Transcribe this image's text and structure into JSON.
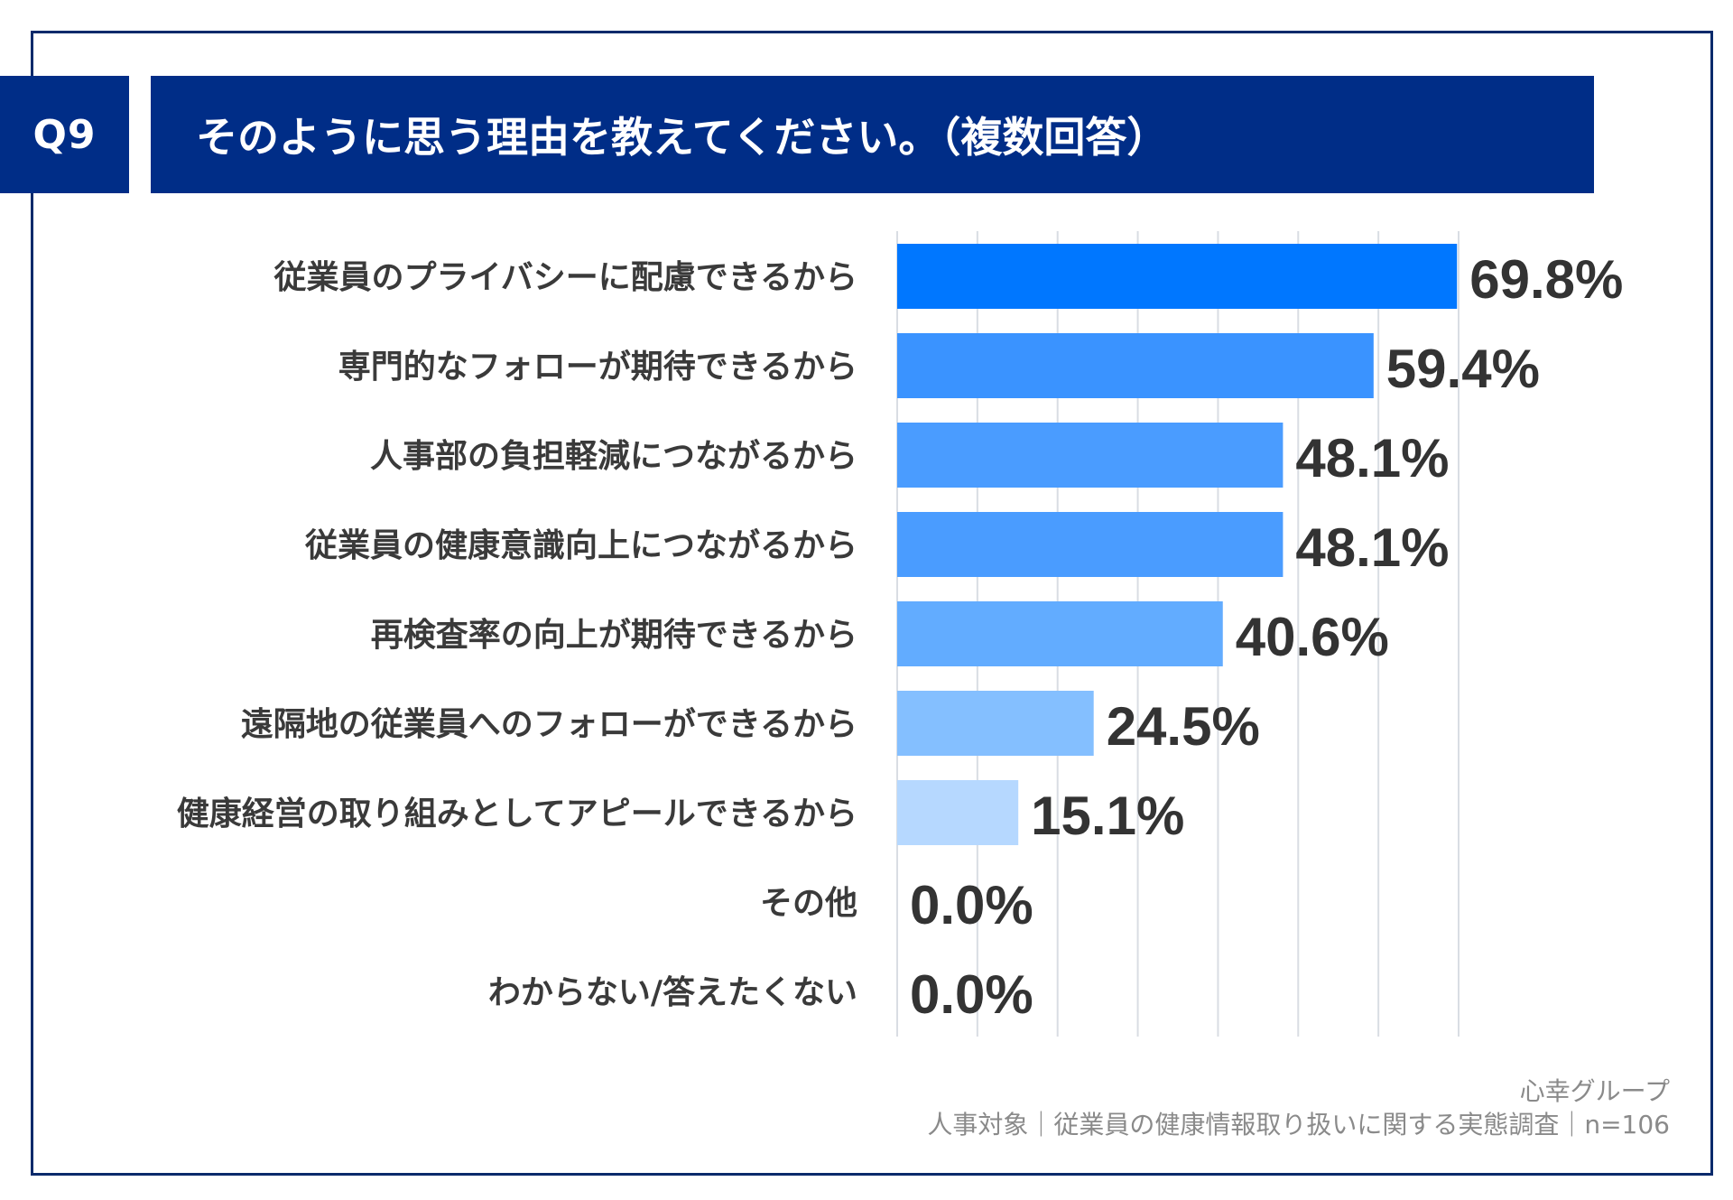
{
  "header": {
    "question_no": "Q9",
    "title": "そのように思う理由を教えてください。（複数回答）"
  },
  "footer": {
    "brand": "心幸グループ",
    "source": "人事対象｜従業員の健康情報取り扱いに関する実態調査｜n=106"
  },
  "colors": {
    "header_bg": "#002d87",
    "bar_palette": [
      "#0077ff",
      "#3a93ff",
      "#4a9cff",
      "#4a9cff",
      "#62acff",
      "#84bfff",
      "#b6d8ff",
      "#c5e0ff",
      "#c5e0ff"
    ],
    "gridline": "#d9dde3"
  },
  "chart_data": {
    "type": "bar",
    "orientation": "horizontal",
    "categories": [
      "従業員のプライバシーに配慮できるから",
      "専門的なフォローが期待できるから",
      "人事部の負担軽減につながるから",
      "従業員の健康意識向上につながるから",
      "再検査率の向上が期待できるから",
      "遠隔地の従業員へのフォローができるから",
      "健康経営の取り組みとしてアピールできるから",
      "その他",
      "わからない/答えたくない"
    ],
    "values": [
      69.8,
      59.4,
      48.1,
      48.1,
      40.6,
      24.5,
      15.1,
      0.0,
      0.0
    ],
    "value_labels": [
      "69.8%",
      "59.4%",
      "48.1%",
      "48.1%",
      "40.6%",
      "24.5%",
      "15.1%",
      "0.0%",
      "0.0%"
    ],
    "xlim": [
      0,
      70
    ],
    "grid": true
  }
}
